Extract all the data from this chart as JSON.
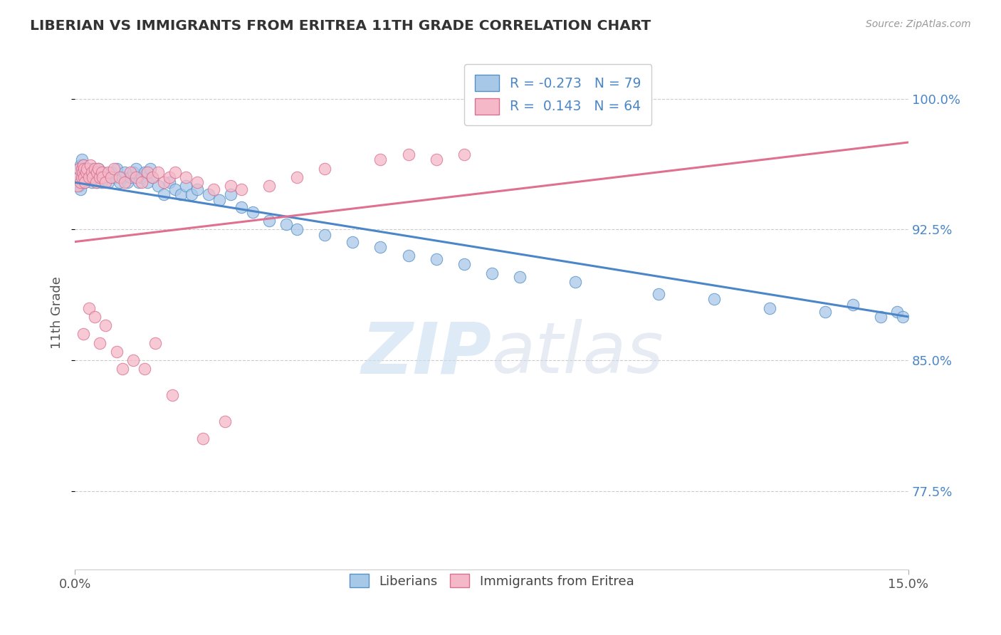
{
  "title": "LIBERIAN VS IMMIGRANTS FROM ERITREA 11TH GRADE CORRELATION CHART",
  "source_text": "Source: ZipAtlas.com",
  "ylabel": "11th Grade",
  "xlim": [
    0.0,
    15.0
  ],
  "ylim": [
    73.0,
    102.5
  ],
  "yticks": [
    77.5,
    85.0,
    92.5,
    100.0
  ],
  "xticks": [
    0.0,
    15.0
  ],
  "xtick_labels": [
    "0.0%",
    "15.0%"
  ],
  "ytick_labels": [
    "77.5%",
    "85.0%",
    "92.5%",
    "100.0%"
  ],
  "blue_color": "#a8c8e8",
  "pink_color": "#f5b8c8",
  "blue_edge_color": "#5590c8",
  "pink_edge_color": "#d87090",
  "blue_line_color": "#4a86c8",
  "pink_line_color": "#e07090",
  "legend_blue_label": "R = -0.273   N = 79",
  "legend_pink_label": "R =  0.143   N = 64",
  "bottom_legend_blue": "Liberians",
  "bottom_legend_pink": "Immigrants from Eritrea",
  "watermark_zip": "ZIP",
  "watermark_atlas": "atlas",
  "blue_line_x0": 0.0,
  "blue_line_y0": 95.2,
  "blue_line_x1": 15.0,
  "blue_line_y1": 87.5,
  "pink_line_x0": 0.0,
  "pink_line_y0": 91.8,
  "pink_line_x1": 15.0,
  "pink_line_y1": 97.5,
  "blue_x": [
    0.05,
    0.07,
    0.08,
    0.1,
    0.1,
    0.12,
    0.12,
    0.13,
    0.14,
    0.15,
    0.15,
    0.16,
    0.17,
    0.18,
    0.2,
    0.2,
    0.22,
    0.25,
    0.28,
    0.3,
    0.32,
    0.35,
    0.38,
    0.4,
    0.42,
    0.45,
    0.48,
    0.5,
    0.55,
    0.6,
    0.65,
    0.7,
    0.75,
    0.8,
    0.85,
    0.9,
    0.95,
    1.0,
    1.05,
    1.1,
    1.15,
    1.2,
    1.25,
    1.3,
    1.35,
    1.4,
    1.5,
    1.6,
    1.7,
    1.8,
    1.9,
    2.0,
    2.1,
    2.2,
    2.4,
    2.6,
    2.8,
    3.0,
    3.2,
    3.5,
    3.8,
    4.0,
    4.5,
    5.0,
    5.5,
    6.0,
    6.5,
    7.0,
    7.5,
    8.0,
    9.0,
    10.5,
    11.5,
    12.5,
    13.5,
    14.0,
    14.5,
    14.8,
    14.9
  ],
  "blue_y": [
    95.5,
    96.0,
    95.0,
    96.2,
    94.8,
    95.5,
    96.5,
    95.2,
    96.0,
    95.8,
    96.2,
    95.5,
    96.0,
    95.2,
    95.5,
    96.0,
    95.8,
    96.0,
    95.5,
    95.2,
    96.0,
    95.5,
    95.8,
    95.2,
    96.0,
    95.5,
    95.2,
    95.8,
    95.5,
    95.2,
    95.8,
    95.5,
    96.0,
    95.2,
    95.5,
    95.8,
    95.2,
    95.5,
    95.8,
    96.0,
    95.2,
    95.5,
    95.8,
    95.2,
    96.0,
    95.5,
    95.0,
    94.5,
    95.2,
    94.8,
    94.5,
    95.0,
    94.5,
    94.8,
    94.5,
    94.2,
    94.5,
    93.8,
    93.5,
    93.0,
    92.8,
    92.5,
    92.2,
    91.8,
    91.5,
    91.0,
    90.8,
    90.5,
    90.0,
    89.8,
    89.5,
    88.8,
    88.5,
    88.0,
    87.8,
    88.2,
    87.5,
    87.8,
    87.5
  ],
  "pink_x": [
    0.05,
    0.07,
    0.08,
    0.1,
    0.12,
    0.12,
    0.14,
    0.15,
    0.16,
    0.17,
    0.18,
    0.2,
    0.22,
    0.25,
    0.28,
    0.3,
    0.32,
    0.35,
    0.38,
    0.4,
    0.42,
    0.45,
    0.48,
    0.5,
    0.55,
    0.6,
    0.65,
    0.7,
    0.8,
    0.9,
    1.0,
    1.1,
    1.2,
    1.3,
    1.4,
    1.5,
    1.6,
    1.7,
    1.8,
    2.0,
    2.2,
    2.5,
    2.8,
    3.0,
    3.5,
    4.0,
    4.5,
    5.5,
    6.0,
    6.5,
    7.0,
    0.15,
    0.25,
    0.35,
    0.45,
    0.55,
    0.75,
    0.85,
    1.05,
    1.25,
    1.45,
    1.75,
    2.3,
    2.7
  ],
  "pink_y": [
    95.0,
    95.5,
    96.0,
    95.2,
    96.0,
    95.5,
    95.8,
    96.2,
    95.5,
    96.0,
    95.2,
    95.8,
    96.0,
    95.5,
    96.2,
    95.8,
    95.5,
    96.0,
    95.2,
    95.8,
    96.0,
    95.5,
    95.8,
    95.5,
    95.2,
    95.8,
    95.5,
    96.0,
    95.5,
    95.2,
    95.8,
    95.5,
    95.2,
    95.8,
    95.5,
    95.8,
    95.2,
    95.5,
    95.8,
    95.5,
    95.2,
    94.8,
    95.0,
    94.8,
    95.0,
    95.5,
    96.0,
    96.5,
    96.8,
    96.5,
    96.8,
    86.5,
    88.0,
    87.5,
    86.0,
    87.0,
    85.5,
    84.5,
    85.0,
    84.5,
    86.0,
    83.0,
    80.5,
    81.5
  ]
}
